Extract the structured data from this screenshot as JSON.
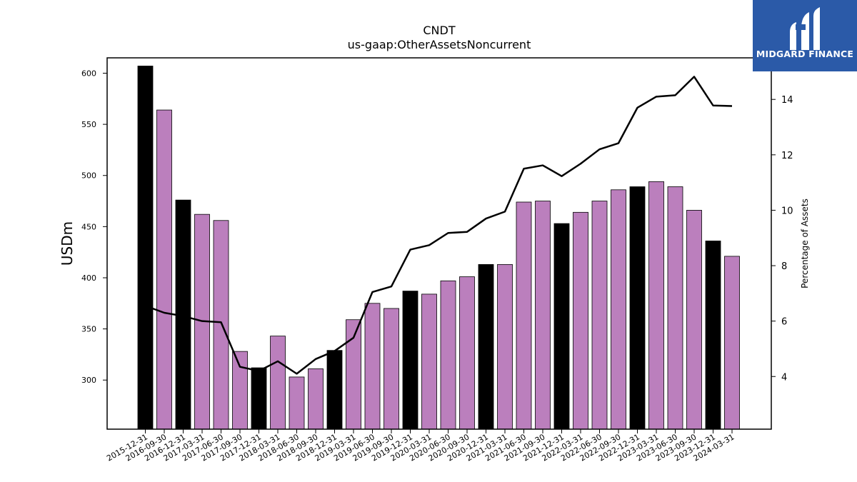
{
  "logo": {
    "text": "MIDGARD FINANCE",
    "bg_color": "#2b5aa8"
  },
  "chart_data": {
    "type": "bar",
    "title": "CNDT",
    "subtitle": "us-gaap:OtherAssetsNoncurrent",
    "ylabel": "USDm",
    "y2label": "Percentage of Assets",
    "ylim": [
      252,
      615
    ],
    "y2lim": [
      2.1,
      15.5
    ],
    "yticks": [
      300,
      350,
      400,
      450,
      500,
      550,
      600
    ],
    "y2ticks": [
      4,
      6,
      8,
      10,
      12,
      14
    ],
    "categories": [
      "2015-12-31",
      "2016-09-30",
      "2016-12-31",
      "2017-03-31",
      "2017-06-30",
      "2017-09-30",
      "2017-12-31",
      "2018-03-31",
      "2018-06-30",
      "2018-09-30",
      "2018-12-31",
      "2019-03-31",
      "2019-06-30",
      "2019-09-30",
      "2019-12-31",
      "2020-03-31",
      "2020-06-30",
      "2020-09-30",
      "2020-12-31",
      "2021-03-31",
      "2021-06-30",
      "2021-09-30",
      "2021-12-31",
      "2022-03-31",
      "2022-06-30",
      "2022-09-30",
      "2022-12-31",
      "2023-03-31",
      "2023-06-30",
      "2023-09-30",
      "2023-12-31",
      "2024-03-31"
    ],
    "series": [
      {
        "type": "bar",
        "values": [
          607,
          564,
          476,
          462,
          456,
          328,
          312,
          343,
          303,
          311,
          329,
          359,
          375,
          370,
          387,
          384,
          397,
          401,
          413,
          413,
          474,
          475,
          453,
          464,
          475,
          486,
          489,
          494,
          489,
          466,
          436,
          421
        ]
      },
      {
        "type": "line",
        "axis": "right",
        "values": [
          6.55,
          6.3,
          6.18,
          6.0,
          5.96,
          4.35,
          4.2,
          4.55,
          4.1,
          4.63,
          4.92,
          5.4,
          7.05,
          7.25,
          8.58,
          8.74,
          9.18,
          9.22,
          9.7,
          9.95,
          11.5,
          11.62,
          11.23,
          11.68,
          12.2,
          12.42,
          13.7,
          14.1,
          14.15,
          14.82,
          13.78,
          13.76
        ]
      }
    ],
    "bar_colors": {
      "year_end": "#000000",
      "quarter": "#bb7fbd"
    },
    "line_color": "#000000"
  }
}
